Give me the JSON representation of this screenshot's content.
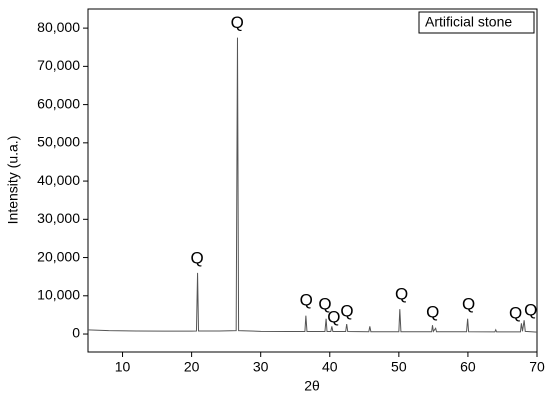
{
  "chart_data": {
    "type": "line",
    "xlabel": "2θ",
    "ylabel": "Intensity (u.a.)",
    "x": [
      5,
      8,
      12,
      16,
      20,
      20.7,
      20.86,
      21.0,
      24,
      26.45,
      26.64,
      26.8,
      30,
      34,
      36.4,
      36.54,
      36.7,
      39.3,
      39.47,
      39.6,
      40.15,
      40.3,
      40.45,
      42.3,
      42.45,
      42.6,
      45.65,
      45.8,
      45.95,
      50.0,
      50.14,
      50.3,
      54.75,
      54.87,
      55.0,
      55.33,
      55.45,
      59.8,
      59.96,
      60.1,
      63.9,
      64.03,
      64.15,
      67.6,
      67.74,
      67.9,
      68.14,
      68.3,
      70
    ],
    "series": [
      {
        "name": "Artificial stone",
        "color": "#555555",
        "values": [
          1100,
          900,
          800,
          750,
          750,
          800,
          16000,
          800,
          800,
          900,
          77500,
          900,
          700,
          650,
          650,
          4800,
          650,
          650,
          4000,
          650,
          650,
          2000,
          650,
          650,
          2600,
          650,
          600,
          2000,
          600,
          600,
          6500,
          600,
          600,
          2300,
          700,
          1500,
          600,
          600,
          4000,
          600,
          550,
          1100,
          550,
          550,
          2800,
          700,
          3600,
          700,
          500
        ]
      }
    ],
    "annotations": [
      {
        "text": "Q",
        "x": 20.8,
        "y": 19600
      },
      {
        "text": "Q",
        "x": 26.6,
        "y": 81150
      },
      {
        "text": "Q",
        "x": 36.6,
        "y": 8600
      },
      {
        "text": "Q",
        "x": 39.3,
        "y": 7600
      },
      {
        "text": "Q",
        "x": 40.6,
        "y": 4200
      },
      {
        "text": "Q",
        "x": 42.5,
        "y": 5800
      },
      {
        "text": "Q",
        "x": 50.4,
        "y": 10200
      },
      {
        "text": "Q",
        "x": 54.9,
        "y": 5500
      },
      {
        "text": "Q",
        "x": 60.1,
        "y": 7600
      },
      {
        "text": "Q",
        "x": 66.9,
        "y": 5200
      },
      {
        "text": "Q",
        "x": 69.1,
        "y": 6000
      }
    ],
    "xlim": [
      5,
      70
    ],
    "xticks": [
      10,
      20,
      30,
      40,
      50,
      60,
      70
    ],
    "ylim": [
      -4700,
      85000
    ],
    "yticks": [
      0,
      {
        "value": 10000,
        "label": "10,000"
      },
      {
        "value": 20000,
        "label": "20,000"
      },
      {
        "value": 30000,
        "label": "30,000"
      },
      {
        "value": 40000,
        "label": "40,000"
      },
      {
        "value": 50000,
        "label": "50,000"
      },
      {
        "value": 60000,
        "label": "60,000"
      },
      {
        "value": 70000,
        "label": "70,000"
      },
      {
        "value": 80000,
        "label": "80,000"
      }
    ],
    "legend": "top-right"
  }
}
